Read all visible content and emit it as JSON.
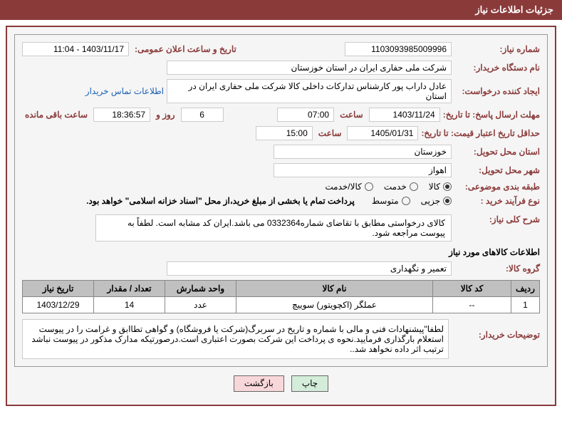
{
  "header": {
    "title": "جزئیات اطلاعات نیاز"
  },
  "fields": {
    "need_number_label": "شماره نیاز:",
    "need_number": "1103093985009996",
    "announce_date_label": "تاریخ و ساعت اعلان عمومی:",
    "announce_date": "1403/11/17 - 11:04",
    "buyer_org_label": "نام دستگاه خریدار:",
    "buyer_org": "شرکت ملی حفاری ایران در استان خوزستان",
    "requester_label": "ایجاد کننده درخواست:",
    "requester": "عادل داراب پور کارشناس تدارکات داخلی کالا شرکت ملی حفاری ایران در استان",
    "contact_link": "اطلاعات تماس خریدار",
    "deadline_label": "مهلت ارسال پاسخ: تا تاریخ:",
    "deadline_date": "1403/11/24",
    "time_label": "ساعت",
    "deadline_time": "07:00",
    "days_label": "روز و",
    "days_remain": "6",
    "hours_remain": "18:36:57",
    "remain_label": "ساعت باقی مانده",
    "validity_label": "حداقل تاریخ اعتبار قیمت: تا تاریخ:",
    "validity_date": "1405/01/31",
    "validity_time": "15:00",
    "province_label": "استان محل تحویل:",
    "province": "خوزستان",
    "city_label": "شهر محل تحویل:",
    "city": "اهواز",
    "category_label": "طبقه بندی موضوعی:",
    "category_options": {
      "goods": "کالا",
      "service": "خدمت",
      "goods_service": "کالا/خدمت"
    },
    "process_label": "نوع فرآیند خرید :",
    "process_options": {
      "partial": "جزیی",
      "medium": "متوسط"
    },
    "process_note": "پرداخت تمام یا بخشی از مبلغ خرید،از محل \"اسناد خزانه اسلامی\" خواهد بود.",
    "need_desc_label": "شرح کلی نیاز:",
    "need_desc": "کالای درخواستی مطابق با تقاضای شماره0332364 می باشد.ایران کد مشابه است. لطفاً به پیوست مراجعه شود.",
    "goods_section": "اطلاعات کالاهای مورد نیاز",
    "goods_group_label": "گروه کالا:",
    "goods_group": "تعمیر و نگهداری",
    "buyer_notes_label": "توضیحات خریدار:",
    "buyer_notes": "لطفا\"پیشنهادات فنی و مالی با شماره و تاریخ در سربرگ(شرکت یا فروشگاه) و گواهی تطاابق و غرامت را در پیوست استعلام بارگذاری فرمایید.نحوه ی پرداخت این شرکت بصورت اعتباری است.درصورتیکه مدارک مذکور در پیوست نباشد ترتیب اثر داده نخواهد شد.."
  },
  "table": {
    "headers": {
      "row": "ردیف",
      "code": "کد کالا",
      "name": "نام کالا",
      "unit": "واحد شمارش",
      "qty": "تعداد / مقدار",
      "date": "تاریخ نیاز"
    },
    "rows": [
      {
        "row": "1",
        "code": "--",
        "name": "عملگر (اکچویتور) سوییچ",
        "unit": "عدد",
        "qty": "14",
        "date": "1403/12/29"
      }
    ]
  },
  "buttons": {
    "print": "چاپ",
    "back": "بازگشت"
  },
  "watermark": "AriaTender.neT"
}
